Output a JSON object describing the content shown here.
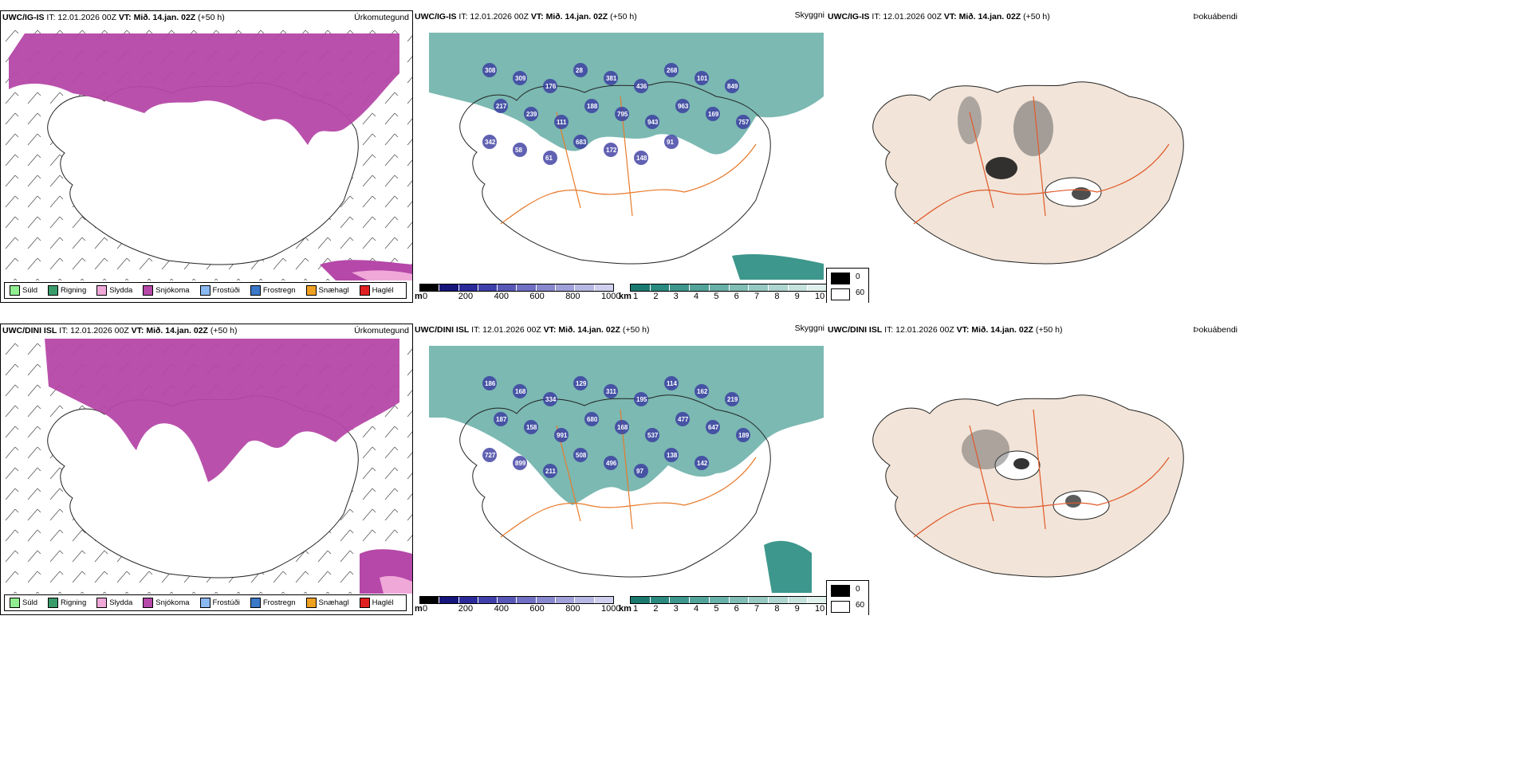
{
  "rows": [
    {
      "model": "UWC/IG-IS",
      "panels": [
        {
          "model": "UWC/IG-IS",
          "it": "IT: 12.01.2026 00Z",
          "vt_label": "VT:",
          "vt": "Mið. 14.jan. 02Z",
          "lead": "(+50 h)",
          "tag": "Úrkomutegund"
        },
        {
          "model": "UWC/IG-IS",
          "it": "IT: 12.01.2026 00Z",
          "vt_label": "VT:",
          "vt": "Mið. 14.jan. 02Z",
          "lead": "(+50 h)",
          "tag": "Skyggni"
        },
        {
          "model": "UWC/IG-IS",
          "it": "IT: 12.01.2026 00Z",
          "vt_label": "VT:",
          "vt": "Mið. 14.jan. 02Z",
          "lead": "(+50 h)",
          "tag": "Þokuábendi"
        }
      ],
      "labels": [
        "308",
        "309",
        "176",
        "28",
        "381",
        "436",
        "268",
        "101",
        "849",
        "217",
        "239",
        "111",
        "188",
        "795",
        "943",
        "963",
        "169",
        "757",
        "342",
        "58",
        "61",
        "683",
        "172",
        "148",
        "91"
      ]
    },
    {
      "model": "UWC/DINI ISL",
      "panels": [
        {
          "model": "UWC/DINI ISL",
          "it": "IT: 12.01.2026 00Z",
          "vt_label": "VT:",
          "vt": "Mið. 14.jan. 02Z",
          "lead": "(+50 h)",
          "tag": "Úrkomutegund"
        },
        {
          "model": "UWC/DINI ISL",
          "it": "IT: 12.01.2026 00Z",
          "vt_label": "VT:",
          "vt": "Mið. 14.jan. 02Z",
          "lead": "(+50 h)",
          "tag": "Skyggni"
        },
        {
          "model": "UWC/DINI ISL",
          "it": "IT: 12.01.2026 00Z",
          "vt_label": "VT:",
          "vt": "Mið. 14.jan. 02Z",
          "lead": "(+50 h)",
          "tag": "Þokuábendi"
        }
      ],
      "labels": [
        "186",
        "168",
        "334",
        "129",
        "311",
        "195",
        "114",
        "162",
        "219",
        "187",
        "158",
        "991",
        "680",
        "168",
        "537",
        "477",
        "647",
        "189",
        "727",
        "899",
        "211",
        "508",
        "496",
        "97",
        "138",
        "142"
      ]
    }
  ],
  "precip_legend": [
    {
      "label": "Súld",
      "color": "#90ee90"
    },
    {
      "label": "Rigning",
      "color": "#3a9b6a"
    },
    {
      "label": "Slydda",
      "color": "#f0a8d8"
    },
    {
      "label": "Snjókoma",
      "color": "#b548a8"
    },
    {
      "label": "Frostúði",
      "color": "#8ab8f0"
    },
    {
      "label": "Frostregn",
      "color": "#3a78c8"
    },
    {
      "label": "Snæhagl",
      "color": "#f0a020"
    },
    {
      "label": "Haglél",
      "color": "#e02020"
    }
  ],
  "ceiling_bar": {
    "unit": "m",
    "ticks": [
      "0",
      "200",
      "400",
      "600",
      "800",
      "1000"
    ],
    "colors": [
      "#000000",
      "#15157a",
      "#2a2a9a",
      "#4040aa",
      "#5858b8",
      "#7070c4",
      "#8888cf",
      "#a0a0da",
      "#b8b8e4",
      "#d0d0ee"
    ]
  },
  "vis_bar": {
    "unit": "km",
    "ticks": [
      "1",
      "2",
      "3",
      "4",
      "5",
      "6",
      "7",
      "8",
      "9",
      "10"
    ],
    "colors": [
      "#1a7a70",
      "#2a8a80",
      "#3d978d",
      "#52a49a",
      "#68b1a8",
      "#7fbdb5",
      "#96c9c2",
      "#aed5cf",
      "#c6e2dd",
      "#e0f0ed"
    ]
  },
  "fog_legend": [
    {
      "value": "0",
      "color": "#000000"
    },
    {
      "value": "60",
      "color": "#ffffff"
    }
  ]
}
